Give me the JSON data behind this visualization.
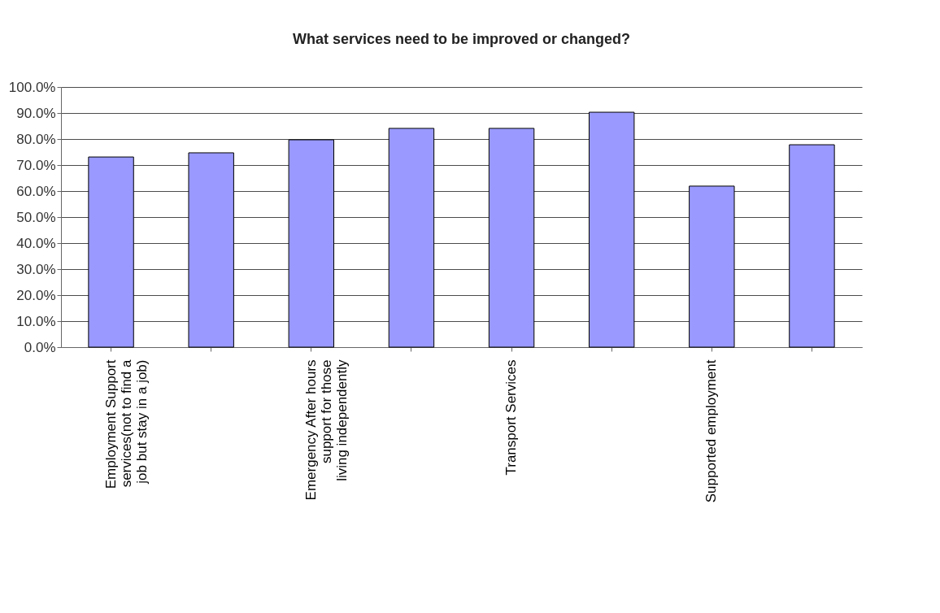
{
  "chart_data": {
    "type": "bar",
    "title": "What services need to be improved or changed?",
    "categories": [
      "Employment Support services(not to find a job but stay in a job)",
      null,
      "Emergency After hours support for those living independently",
      null,
      "Transport Services",
      null,
      "Supported employment",
      null
    ],
    "values": [
      73.1,
      74.7,
      79.7,
      84.1,
      84.1,
      90.3,
      61.9,
      77.8
    ],
    "color": "#9999ff",
    "ylim": [
      0,
      100
    ],
    "yticks": [
      {
        "value": 0,
        "label": "0.0%"
      },
      {
        "value": 10,
        "label": "10.0%"
      },
      {
        "value": 20,
        "label": "20.0%"
      },
      {
        "value": 30,
        "label": "30.0%"
      },
      {
        "value": 40,
        "label": "40.0%"
      },
      {
        "value": 50,
        "label": "50.0%"
      },
      {
        "value": 60,
        "label": "60.0%"
      },
      {
        "value": 70,
        "label": "70.0%"
      },
      {
        "value": 80,
        "label": "80.0%"
      },
      {
        "value": 90,
        "label": "90.0%"
      },
      {
        "value": 100,
        "label": "100.0%"
      }
    ],
    "grid": "y"
  }
}
